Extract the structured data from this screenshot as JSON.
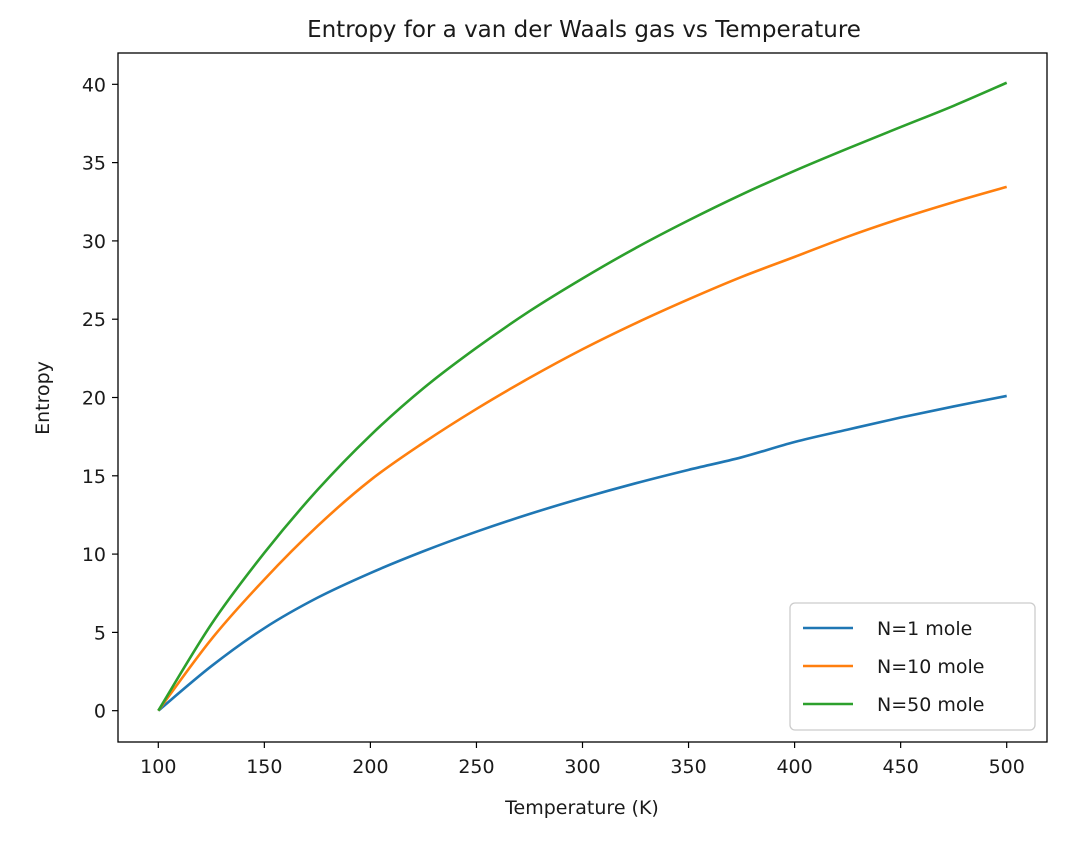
{
  "chart_data": {
    "type": "line",
    "title": "Entropy for a van der Waals gas vs Temperature",
    "xlabel": "Temperature (K)",
    "ylabel": "Entropy",
    "xlim": [
      81,
      519
    ],
    "ylim": [
      -2,
      42
    ],
    "xticks": [
      100,
      150,
      200,
      250,
      300,
      350,
      400,
      450,
      500
    ],
    "yticks": [
      0,
      5,
      10,
      15,
      20,
      25,
      30,
      35,
      40
    ],
    "grid": false,
    "legend_position": "lower-right",
    "x": [
      100,
      125,
      150,
      175,
      200,
      225,
      250,
      275,
      300,
      325,
      350,
      375,
      400,
      425,
      450,
      475,
      500
    ],
    "series": [
      {
        "name": "N=1 mole",
        "color": "#1f77b4",
        "values": [
          0,
          2.84,
          5.27,
          7.21,
          8.79,
          10.18,
          11.43,
          12.56,
          13.58,
          14.52,
          15.38,
          16.18,
          17.16,
          17.95,
          18.72,
          19.43,
          20.1
        ]
      },
      {
        "name": "N=10 mole",
        "color": "#ff7f0e",
        "values": [
          0,
          4.56,
          8.38,
          11.78,
          14.72,
          17.11,
          19.27,
          21.25,
          23.08,
          24.74,
          26.27,
          27.7,
          28.98,
          30.27,
          31.43,
          32.48,
          33.45
        ]
      },
      {
        "name": "N=50 mole",
        "color": "#2ca02c",
        "values": [
          0,
          5.52,
          10.08,
          14.09,
          17.58,
          20.59,
          23.17,
          25.51,
          27.6,
          29.54,
          31.31,
          32.96,
          34.48,
          35.9,
          37.27,
          38.63,
          40.1
        ]
      }
    ]
  }
}
